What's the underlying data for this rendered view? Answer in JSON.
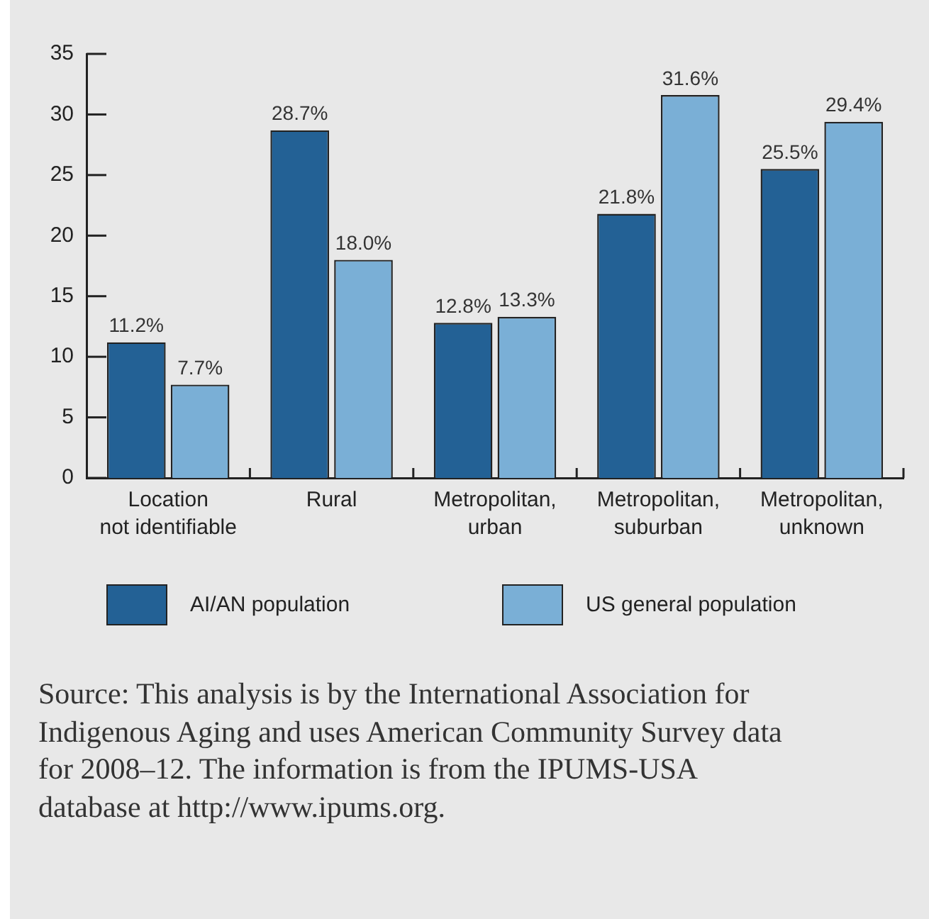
{
  "chart_data": {
    "type": "bar",
    "categories": [
      "Location\nnot identifiable",
      "Rural",
      "Metropolitan,\nurban",
      "Metropolitan,\nsuburban",
      "Metropolitan,\nunknown"
    ],
    "series": [
      {
        "name": "AI/AN population",
        "color": "#236195",
        "values": [
          11.2,
          28.7,
          12.8,
          21.8,
          25.5
        ],
        "value_labels": [
          "11.2%",
          "28.7%",
          "12.8%",
          "21.8%",
          "25.5%"
        ]
      },
      {
        "name": "US general population",
        "color": "#7aafd6",
        "values": [
          7.7,
          18.0,
          13.3,
          31.6,
          29.4
        ],
        "value_labels": [
          "7.7%",
          "18.0%",
          "13.3%",
          "31.6%",
          "29.4%"
        ]
      }
    ],
    "ylim": [
      0,
      35
    ],
    "yticks": [
      0,
      5,
      10,
      15,
      20,
      25,
      30,
      35
    ],
    "legend": "bottom",
    "annotations": [
      "Source: This analysis is by the International Association for Indigenous Aging and uses American Community Survey data for 2008–12. The information is from the IPUMS-USA database at http://www.ipums.org."
    ]
  }
}
